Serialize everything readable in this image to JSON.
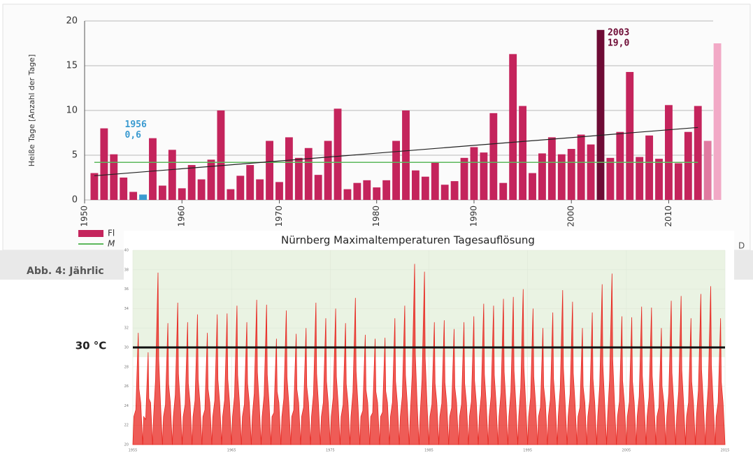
{
  "chart_data": [
    {
      "type": "bar",
      "y_label": "Heiße Tage [Anzahl der Tage]",
      "series": [
        {
          "color": "#c4245c",
          "x": [
            1951,
            1952,
            1953,
            1954,
            1955,
            1956,
            1957,
            1958,
            1959,
            1960,
            1961,
            1962,
            1963,
            1964,
            1965,
            1966,
            1967,
            1968,
            1969,
            1970,
            1971,
            1972,
            1973,
            1974,
            1975,
            1976,
            1977,
            1978,
            1979,
            1980,
            1981,
            1982,
            1983,
            1984,
            1985,
            1986,
            1987,
            1988,
            1989,
            1990,
            1991,
            1992,
            1993,
            1994,
            1995,
            1996,
            1997,
            1998,
            1999,
            2000,
            2001,
            2002,
            2003,
            2004,
            2005,
            2006,
            2007,
            2008,
            2009,
            2010,
            2011,
            2012,
            2013
          ],
          "values": [
            3.0,
            8.0,
            5.1,
            2.5,
            0.9,
            0.6,
            6.9,
            1.6,
            5.6,
            1.3,
            3.9,
            2.3,
            4.5,
            10.0,
            1.2,
            2.7,
            3.9,
            2.3,
            6.6,
            2.0,
            7.0,
            4.7,
            5.8,
            2.8,
            6.6,
            10.2,
            1.2,
            1.9,
            2.2,
            1.4,
            2.2,
            6.6,
            10.0,
            3.3,
            2.6,
            4.2,
            1.7,
            2.1,
            4.7,
            5.9,
            5.3,
            9.7,
            1.9,
            16.3,
            10.5,
            3.0,
            5.2,
            7.0,
            5.1,
            5.7,
            7.3,
            6.2,
            19.0,
            4.7,
            7.6,
            14.3,
            4.8,
            7.2,
            4.6,
            10.6,
            4.1,
            7.6,
            10.5
          ]
        },
        {
          "colors": [
            "#e07aa0",
            "#f2a9c6"
          ],
          "x": [
            2014,
            2015
          ],
          "values": [
            6.6,
            17.5
          ]
        }
      ],
      "xlim": [
        1950,
        2016
      ],
      "ylim": [
        0,
        20
      ],
      "xticks": [
        1950,
        1960,
        1970,
        1980,
        1990,
        2000,
        2010
      ],
      "yticks": [
        0,
        5,
        10,
        15,
        20
      ],
      "grid": true,
      "annotations": [
        {
          "year": "1956",
          "x": 1956,
          "value": 0.6,
          "value_label": "0,6",
          "color": "#3a9ad0"
        },
        {
          "year": "2003",
          "x": 2003,
          "value": 19.0,
          "value_label": "19,0",
          "color": "#6e0b35"
        }
      ],
      "trend": {
        "x": [
          1951,
          2013
        ],
        "values": [
          2.7,
          8.1
        ],
        "color": "#222222"
      },
      "mean": {
        "x": [
          1951,
          2013
        ],
        "value": 4.2,
        "color": "#5cb85c"
      },
      "legend": [
        {
          "text": "Fl",
          "color": "#c4245c"
        },
        {
          "text": "M",
          "color": "#5cb85c"
        }
      ],
      "caption": "Abb. 4: Jährlic",
      "corner_text": "D"
    },
    {
      "type": "area",
      "title": "Nürnberg Maximaltemperaturen Tagesauflösung",
      "x": [
        1955,
        1956,
        1957,
        1958,
        1959,
        1960,
        1961,
        1962,
        1963,
        1964,
        1965,
        1966,
        1967,
        1968,
        1969,
        1970,
        1971,
        1972,
        1973,
        1974,
        1975,
        1976,
        1977,
        1978,
        1979,
        1980,
        1981,
        1982,
        1983,
        1984,
        1985,
        1986,
        1987,
        1988,
        1989,
        1990,
        1991,
        1992,
        1993,
        1994,
        1995,
        1996,
        1997,
        1998,
        1999,
        2000,
        2001,
        2002,
        2003,
        2004,
        2005,
        2006,
        2007,
        2008,
        2009,
        2010,
        2011,
        2012,
        2013,
        2014
      ],
      "values": [
        31.5,
        29.5,
        37.7,
        32.5,
        34.6,
        32.6,
        33.4,
        31.5,
        33.4,
        33.5,
        34.3,
        32.6,
        34.9,
        34.4,
        30.9,
        33.8,
        31.4,
        32.0,
        34.6,
        33.0,
        34.0,
        32.5,
        35.1,
        31.3,
        30.9,
        31.0,
        33.0,
        34.3,
        38.6,
        37.8,
        32.6,
        32.8,
        31.9,
        32.6,
        33.2,
        34.5,
        34.3,
        35.0,
        35.2,
        36.0,
        34.0,
        32.0,
        33.6,
        35.9,
        34.7,
        32.0,
        33.6,
        36.5,
        37.6,
        33.2,
        33.1,
        34.2,
        34.1,
        32.0,
        34.8,
        35.3,
        33.0,
        35.5,
        36.3,
        33.0
      ],
      "color": "#e8261f",
      "xlim": [
        1955,
        2015
      ],
      "ylim": [
        20,
        40
      ],
      "xticks": [
        1955,
        1965,
        1975,
        1985,
        1995,
        2005,
        2015
      ],
      "yticks": [
        20,
        22,
        24,
        26,
        28,
        30,
        32,
        34,
        36,
        38,
        40
      ],
      "threshold": {
        "value": 30,
        "label": "30 °C"
      }
    }
  ]
}
